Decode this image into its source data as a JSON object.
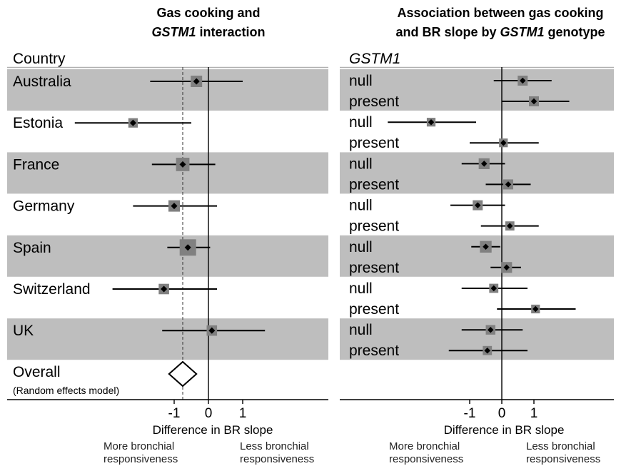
{
  "chart_data": [
    {
      "type": "forest",
      "title_line1": "Gas cooking and",
      "title_line2_italic": "GSTM1",
      "title_line2_rest": " interaction",
      "column_header": "Country",
      "xlabel": "Difference in BR slope",
      "xticks": [
        "-1",
        "0",
        "1"
      ],
      "direction_left": [
        "More bronchial",
        "responsiveness"
      ],
      "direction_right": [
        "Less bronchial",
        "responsiveness"
      ],
      "reference_line": -0.75,
      "rows": [
        {
          "country": "Australia",
          "estimate": -0.35,
          "ci": [
            -1.7,
            1.0
          ],
          "weight": 0.5,
          "shaded": true
        },
        {
          "country": "Estonia",
          "estimate": -2.2,
          "ci": [
            -3.9,
            -0.5
          ],
          "weight": 0.3,
          "shaded": false
        },
        {
          "country": "France",
          "estimate": -0.75,
          "ci": [
            -1.65,
            0.2
          ],
          "weight": 0.7,
          "shaded": true
        },
        {
          "country": "Germany",
          "estimate": -1.0,
          "ci": [
            -2.2,
            0.25
          ],
          "weight": 0.5,
          "shaded": false
        },
        {
          "country": "Spain",
          "estimate": -0.6,
          "ci": [
            -1.2,
            0.05
          ],
          "weight": 1.0,
          "shaded": true
        },
        {
          "country": "Switzerland",
          "estimate": -1.3,
          "ci": [
            -2.8,
            0.25
          ],
          "weight": 0.4,
          "shaded": false
        },
        {
          "country": "UK",
          "estimate": 0.1,
          "ci": [
            -1.35,
            1.65
          ],
          "weight": 0.4,
          "shaded": true
        }
      ],
      "overall": {
        "label": "Overall",
        "note": "(Random effects model)",
        "estimate": -0.75,
        "ci": [
          -1.15,
          -0.35
        ]
      }
    },
    {
      "type": "forest",
      "title_line1": "Association between gas cooking",
      "title_line2_rest": "and BR slope by ",
      "title_line2_italic": "GSTM1",
      "title_line2_end": " genotype",
      "column_header": "GSTM1",
      "xlabel": "Difference in BR slope",
      "xticks": [
        "-1",
        "0",
        "1"
      ],
      "direction_left": [
        "More bronchial",
        "responsiveness"
      ],
      "direction_right": [
        "Less bronchial",
        "responsiveness"
      ],
      "rows": [
        {
          "country": "Australia",
          "genotype": "null",
          "estimate": 0.65,
          "ci": [
            -0.25,
            1.55
          ],
          "weight": 0.5
        },
        {
          "country": "Australia",
          "genotype": "present",
          "estimate": 1.0,
          "ci": [
            0.0,
            2.1
          ],
          "weight": 0.5
        },
        {
          "country": "Estonia",
          "genotype": "null",
          "estimate": -2.2,
          "ci": [
            -3.55,
            -0.8
          ],
          "weight": 0.35
        },
        {
          "country": "Estonia",
          "genotype": "present",
          "estimate": 0.05,
          "ci": [
            -1.0,
            1.15
          ],
          "weight": 0.35
        },
        {
          "country": "France",
          "genotype": "null",
          "estimate": -0.55,
          "ci": [
            -1.25,
            0.1
          ],
          "weight": 0.6
        },
        {
          "country": "France",
          "genotype": "present",
          "estimate": 0.2,
          "ci": [
            -0.5,
            0.9
          ],
          "weight": 0.5
        },
        {
          "country": "Germany",
          "genotype": "null",
          "estimate": -0.75,
          "ci": [
            -1.6,
            0.1
          ],
          "weight": 0.5
        },
        {
          "country": "Germany",
          "genotype": "present",
          "estimate": 0.25,
          "ci": [
            -0.65,
            1.15
          ],
          "weight": 0.4
        },
        {
          "country": "Spain",
          "genotype": "null",
          "estimate": -0.5,
          "ci": [
            -0.95,
            -0.05
          ],
          "weight": 0.7
        },
        {
          "country": "Spain",
          "genotype": "present",
          "estimate": 0.15,
          "ci": [
            -0.35,
            0.6
          ],
          "weight": 0.6
        },
        {
          "country": "Switzerland",
          "genotype": "null",
          "estimate": -0.25,
          "ci": [
            -1.25,
            0.8
          ],
          "weight": 0.4
        },
        {
          "country": "Switzerland",
          "genotype": "present",
          "estimate": 1.05,
          "ci": [
            -0.15,
            2.3
          ],
          "weight": 0.35
        },
        {
          "country": "UK",
          "genotype": "null",
          "estimate": -0.35,
          "ci": [
            -1.25,
            0.65
          ],
          "weight": 0.45
        },
        {
          "country": "UK",
          "genotype": "present",
          "estimate": -0.45,
          "ci": [
            -1.65,
            0.8
          ],
          "weight": 0.4
        }
      ]
    }
  ]
}
